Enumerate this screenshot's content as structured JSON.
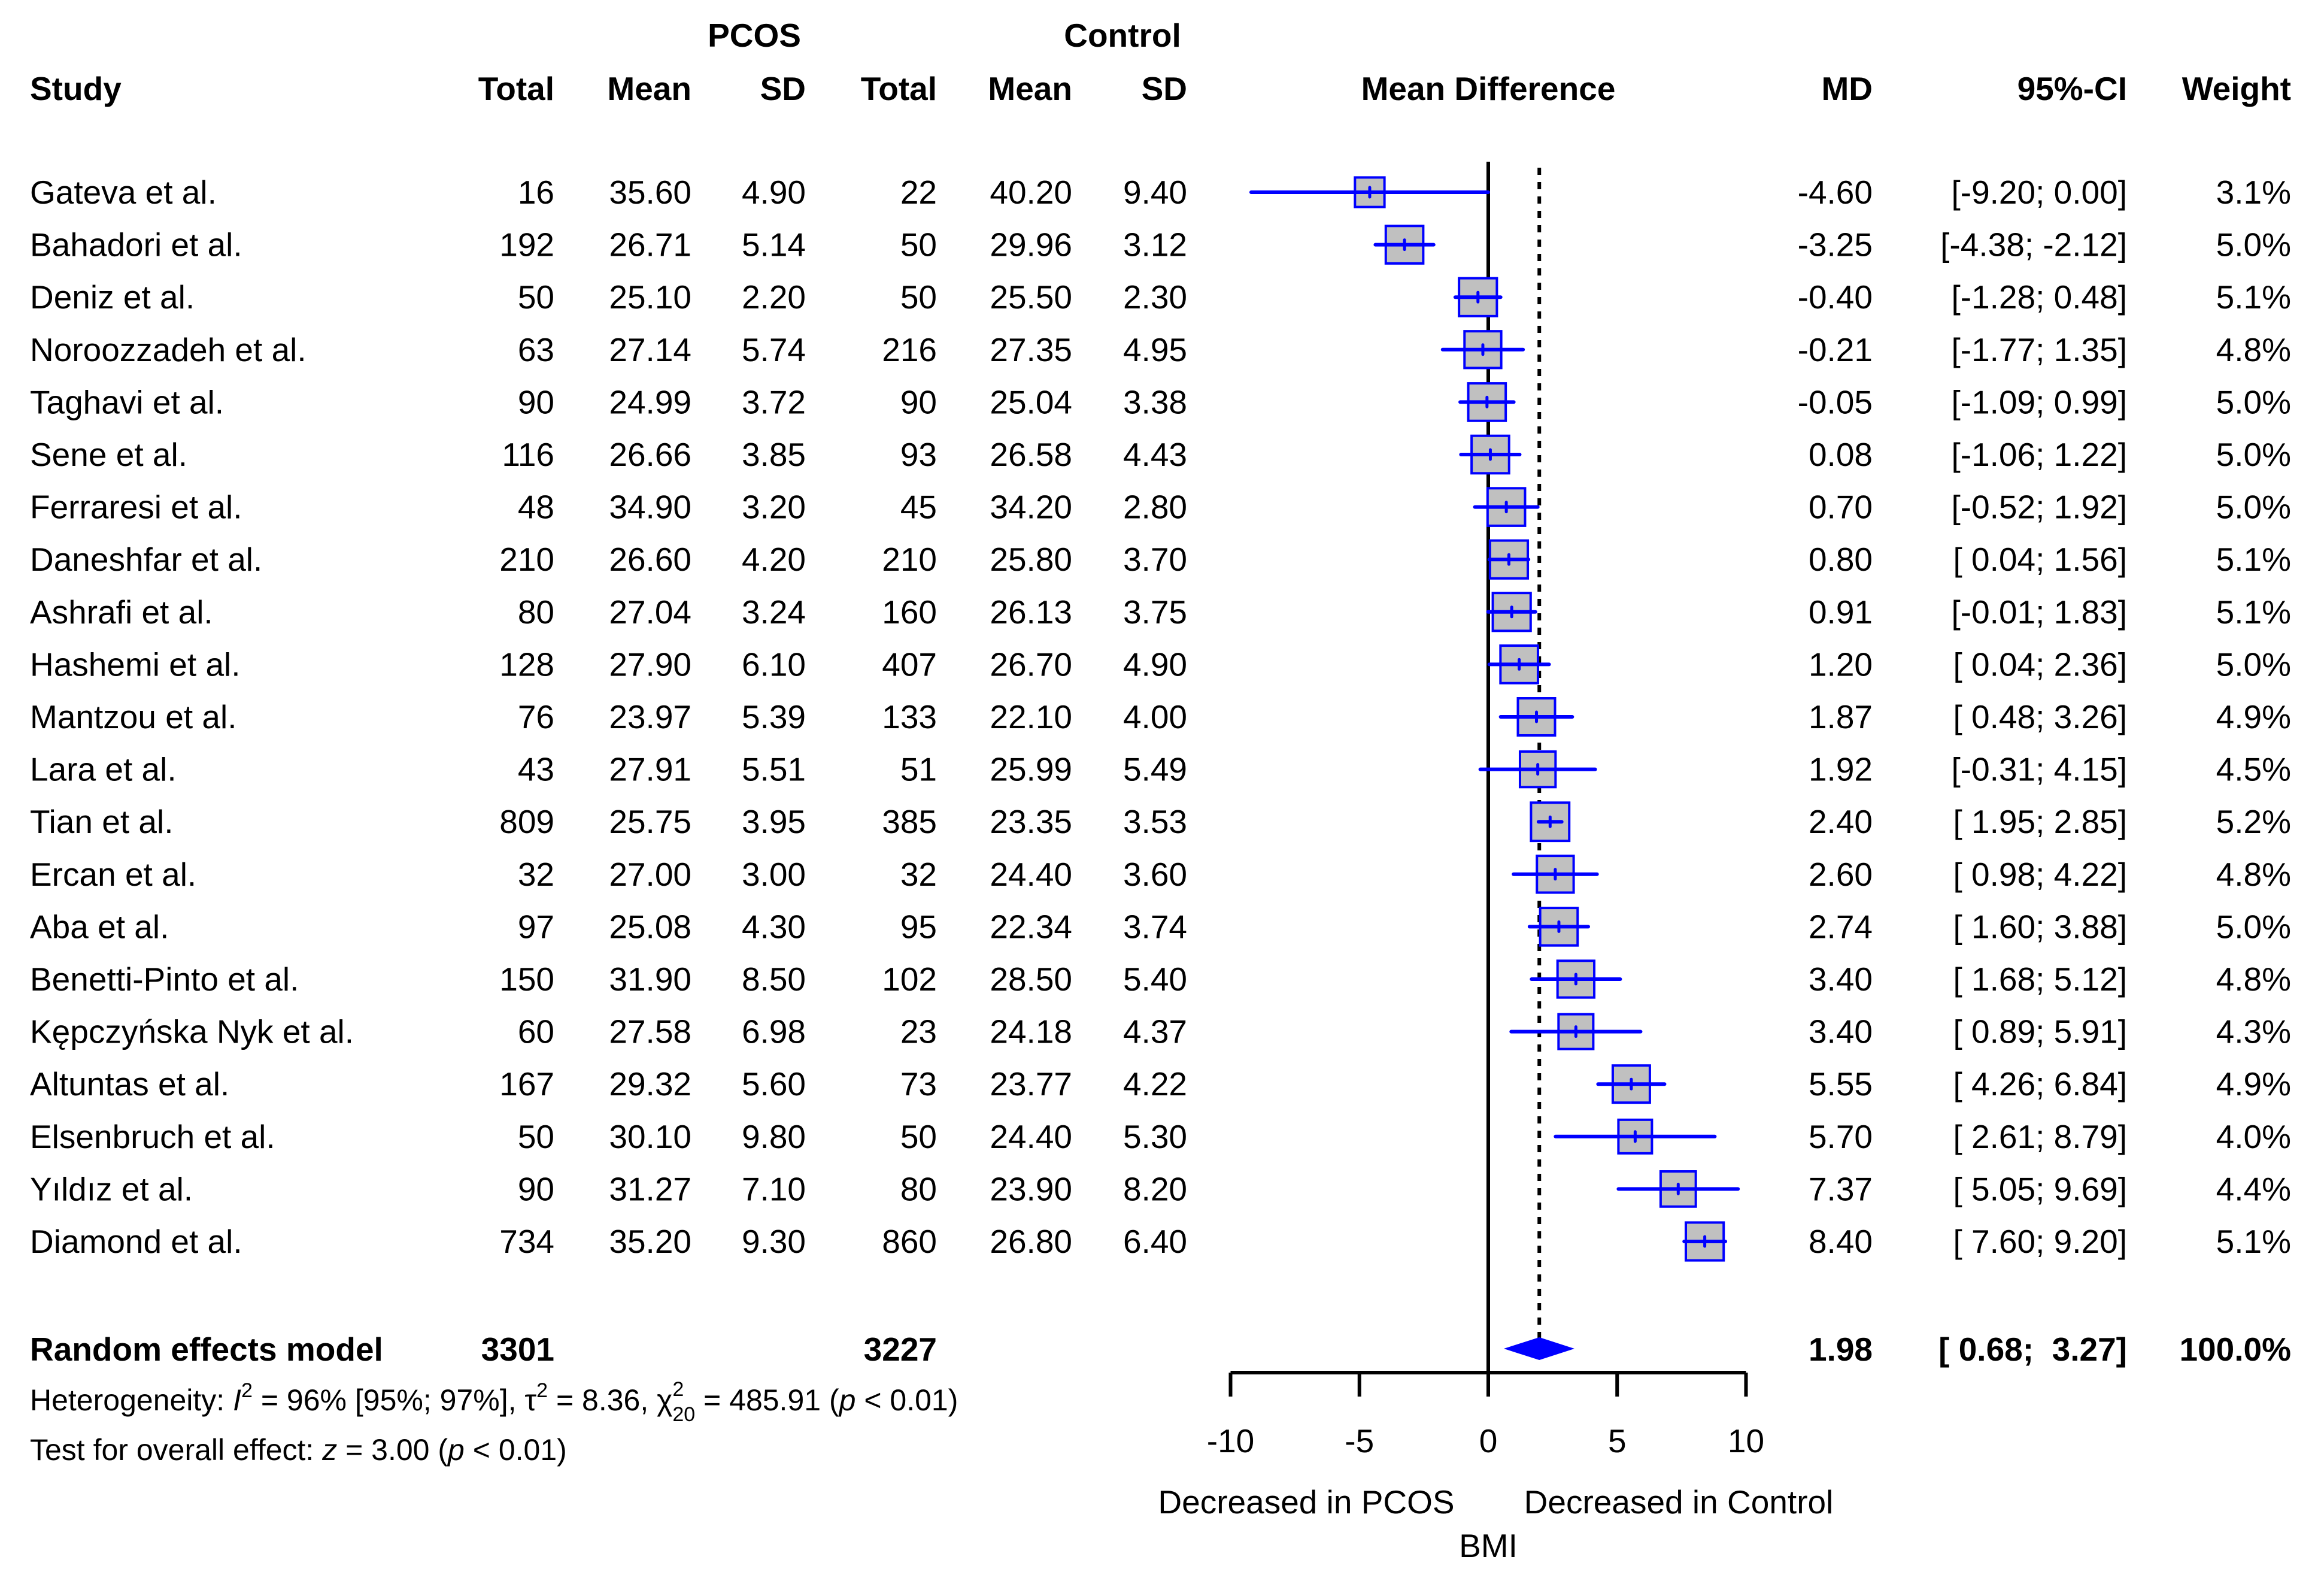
{
  "chart_data": {
    "type": "forest",
    "header": {
      "group1": "PCOS",
      "group2": "Control",
      "study": "Study",
      "total": "Total",
      "mean": "Mean",
      "sd": "SD",
      "plot": "Mean Difference",
      "md": "MD",
      "ci": "95%-CI",
      "weight": "Weight"
    },
    "studies": [
      {
        "study": "Gateva et al.",
        "t1": "16",
        "m1": "35.60",
        "s1": "4.90",
        "t2": "22",
        "m2": "40.20",
        "s2": "9.40",
        "md": -4.6,
        "lo": -9.2,
        "hi": 0.0,
        "md_text": "-4.60",
        "ci_text": "[-9.20;  0.00]",
        "weight": 3.1,
        "weight_text": "3.1%"
      },
      {
        "study": "Bahadori et al.",
        "t1": "192",
        "m1": "26.71",
        "s1": "5.14",
        "t2": "50",
        "m2": "29.96",
        "s2": "3.12",
        "md": -3.25,
        "lo": -4.38,
        "hi": -2.12,
        "md_text": "-3.25",
        "ci_text": "[-4.38; -2.12]",
        "weight": 5.0,
        "weight_text": "5.0%"
      },
      {
        "study": "Deniz et al.",
        "t1": "50",
        "m1": "25.10",
        "s1": "2.20",
        "t2": "50",
        "m2": "25.50",
        "s2": "2.30",
        "md": -0.4,
        "lo": -1.28,
        "hi": 0.48,
        "md_text": "-0.40",
        "ci_text": "[-1.28;  0.48]",
        "weight": 5.1,
        "weight_text": "5.1%"
      },
      {
        "study": "Noroozzadeh et al.",
        "t1": "63",
        "m1": "27.14",
        "s1": "5.74",
        "t2": "216",
        "m2": "27.35",
        "s2": "4.95",
        "md": -0.21,
        "lo": -1.77,
        "hi": 1.35,
        "md_text": "-0.21",
        "ci_text": "[-1.77;  1.35]",
        "weight": 4.8,
        "weight_text": "4.8%"
      },
      {
        "study": "Taghavi et al.",
        "t1": "90",
        "m1": "24.99",
        "s1": "3.72",
        "t2": "90",
        "m2": "25.04",
        "s2": "3.38",
        "md": -0.05,
        "lo": -1.09,
        "hi": 0.99,
        "md_text": "-0.05",
        "ci_text": "[-1.09;  0.99]",
        "weight": 5.0,
        "weight_text": "5.0%"
      },
      {
        "study": "Sene et al.",
        "t1": "116",
        "m1": "26.66",
        "s1": "3.85",
        "t2": "93",
        "m2": "26.58",
        "s2": "4.43",
        "md": 0.08,
        "lo": -1.06,
        "hi": 1.22,
        "md_text": "0.08",
        "ci_text": "[-1.06;  1.22]",
        "weight": 5.0,
        "weight_text": "5.0%"
      },
      {
        "study": "Ferraresi et al.",
        "t1": "48",
        "m1": "34.90",
        "s1": "3.20",
        "t2": "45",
        "m2": "34.20",
        "s2": "2.80",
        "md": 0.7,
        "lo": -0.52,
        "hi": 1.92,
        "md_text": "0.70",
        "ci_text": "[-0.52;  1.92]",
        "weight": 5.0,
        "weight_text": "5.0%"
      },
      {
        "study": "Daneshfar et al.",
        "t1": "210",
        "m1": "26.60",
        "s1": "4.20",
        "t2": "210",
        "m2": "25.80",
        "s2": "3.70",
        "md": 0.8,
        "lo": 0.04,
        "hi": 1.56,
        "md_text": "0.80",
        "ci_text": "[ 0.04;  1.56]",
        "weight": 5.1,
        "weight_text": "5.1%"
      },
      {
        "study": "Ashrafi et al.",
        "t1": "80",
        "m1": "27.04",
        "s1": "3.24",
        "t2": "160",
        "m2": "26.13",
        "s2": "3.75",
        "md": 0.91,
        "lo": -0.01,
        "hi": 1.83,
        "md_text": "0.91",
        "ci_text": "[-0.01;  1.83]",
        "weight": 5.1,
        "weight_text": "5.1%"
      },
      {
        "study": "Hashemi et al.",
        "t1": "128",
        "m1": "27.90",
        "s1": "6.10",
        "t2": "407",
        "m2": "26.70",
        "s2": "4.90",
        "md": 1.2,
        "lo": 0.04,
        "hi": 2.36,
        "md_text": "1.20",
        "ci_text": "[ 0.04;  2.36]",
        "weight": 5.0,
        "weight_text": "5.0%"
      },
      {
        "study": "Mantzou et al.",
        "t1": "76",
        "m1": "23.97",
        "s1": "5.39",
        "t2": "133",
        "m2": "22.10",
        "s2": "4.00",
        "md": 1.87,
        "lo": 0.48,
        "hi": 3.26,
        "md_text": "1.87",
        "ci_text": "[ 0.48;  3.26]",
        "weight": 4.9,
        "weight_text": "4.9%"
      },
      {
        "study": "Lara et al.",
        "t1": "43",
        "m1": "27.91",
        "s1": "5.51",
        "t2": "51",
        "m2": "25.99",
        "s2": "5.49",
        "md": 1.92,
        "lo": -0.31,
        "hi": 4.15,
        "md_text": "1.92",
        "ci_text": "[-0.31;  4.15]",
        "weight": 4.5,
        "weight_text": "4.5%"
      },
      {
        "study": "Tian et al.",
        "t1": "809",
        "m1": "25.75",
        "s1": "3.95",
        "t2": "385",
        "m2": "23.35",
        "s2": "3.53",
        "md": 2.4,
        "lo": 1.95,
        "hi": 2.85,
        "md_text": "2.40",
        "ci_text": "[ 1.95;  2.85]",
        "weight": 5.2,
        "weight_text": "5.2%"
      },
      {
        "study": "Ercan et al.",
        "t1": "32",
        "m1": "27.00",
        "s1": "3.00",
        "t2": "32",
        "m2": "24.40",
        "s2": "3.60",
        "md": 2.6,
        "lo": 0.98,
        "hi": 4.22,
        "md_text": "2.60",
        "ci_text": "[ 0.98;  4.22]",
        "weight": 4.8,
        "weight_text": "4.8%"
      },
      {
        "study": "Aba et al.",
        "t1": "97",
        "m1": "25.08",
        "s1": "4.30",
        "t2": "95",
        "m2": "22.34",
        "s2": "3.74",
        "md": 2.74,
        "lo": 1.6,
        "hi": 3.88,
        "md_text": "2.74",
        "ci_text": "[ 1.60;  3.88]",
        "weight": 5.0,
        "weight_text": "5.0%"
      },
      {
        "study": "Benetti-Pinto et al.",
        "t1": "150",
        "m1": "31.90",
        "s1": "8.50",
        "t2": "102",
        "m2": "28.50",
        "s2": "5.40",
        "md": 3.4,
        "lo": 1.68,
        "hi": 5.12,
        "md_text": "3.40",
        "ci_text": "[ 1.68;  5.12]",
        "weight": 4.8,
        "weight_text": "4.8%"
      },
      {
        "study": "Kępczyńska Nyk et al.",
        "t1": "60",
        "m1": "27.58",
        "s1": "6.98",
        "t2": "23",
        "m2": "24.18",
        "s2": "4.37",
        "md": 3.4,
        "lo": 0.89,
        "hi": 5.91,
        "md_text": "3.40",
        "ci_text": "[ 0.89;  5.91]",
        "weight": 4.3,
        "weight_text": "4.3%"
      },
      {
        "study": "Altuntas et al.",
        "t1": "167",
        "m1": "29.32",
        "s1": "5.60",
        "t2": "73",
        "m2": "23.77",
        "s2": "4.22",
        "md": 5.55,
        "lo": 4.26,
        "hi": 6.84,
        "md_text": "5.55",
        "ci_text": "[ 4.26;  6.84]",
        "weight": 4.9,
        "weight_text": "4.9%"
      },
      {
        "study": "Elsenbruch et al.",
        "t1": "50",
        "m1": "30.10",
        "s1": "9.80",
        "t2": "50",
        "m2": "24.40",
        "s2": "5.30",
        "md": 5.7,
        "lo": 2.61,
        "hi": 8.79,
        "md_text": "5.70",
        "ci_text": "[ 2.61;  8.79]",
        "weight": 4.0,
        "weight_text": "4.0%"
      },
      {
        "study": "Yıldız et al.",
        "t1": "90",
        "m1": "31.27",
        "s1": "7.10",
        "t2": "80",
        "m2": "23.90",
        "s2": "8.20",
        "md": 7.37,
        "lo": 5.05,
        "hi": 9.69,
        "md_text": "7.37",
        "ci_text": "[ 5.05;  9.69]",
        "weight": 4.4,
        "weight_text": "4.4%"
      },
      {
        "study": "Diamond et al.",
        "t1": "734",
        "m1": "35.20",
        "s1": "9.30",
        "t2": "860",
        "m2": "26.80",
        "s2": "6.40",
        "md": 8.4,
        "lo": 7.6,
        "hi": 9.2,
        "md_text": "8.40",
        "ci_text": "[ 7.60;  9.20]",
        "weight": 5.1,
        "weight_text": "5.1%"
      }
    ],
    "pooled": {
      "label": "Random effects model",
      "t1": "3301",
      "t2": "3227",
      "md": 1.98,
      "lo": 0.68,
      "hi": 3.27,
      "md_text": "1.98",
      "ci_text": "[ 0.68;  3.27]",
      "weight_text": "100.0%"
    },
    "heterogeneity": {
      "prefix": "Heterogeneity: ",
      "i2_sym": "I",
      "sup": "2",
      "i2_text": " = 96% [95%; 97%], ",
      "tau_sym": "τ",
      "tau_text": " = 8.36, ",
      "chi_sym": "χ",
      "chi_sub": "20",
      "chi_text": " = 485.91 (",
      "p_sym": "p",
      "p_text": " < 0.01)"
    },
    "overall": {
      "prefix": "Test for overall effect: ",
      "z_sym": "z",
      "z_text": " = 3.00 (",
      "p_sym": "p",
      "p_text": " < 0.01)"
    },
    "xaxis": {
      "ticks": [
        -10,
        -5,
        0,
        5,
        10
      ],
      "tick_labels": [
        "-10",
        "-5",
        "0",
        "5",
        "10"
      ],
      "xlim": [
        -10,
        10
      ],
      "left_label": "Decreased in PCOS",
      "right_label": "Decreased in Control",
      "label": "BMI"
    },
    "colors": {
      "ci_line": "#0000ff",
      "box_fill": "#c0c0c0",
      "box_border": "#0000ff",
      "diamond": "#0000ff",
      "text": "#000000"
    }
  }
}
